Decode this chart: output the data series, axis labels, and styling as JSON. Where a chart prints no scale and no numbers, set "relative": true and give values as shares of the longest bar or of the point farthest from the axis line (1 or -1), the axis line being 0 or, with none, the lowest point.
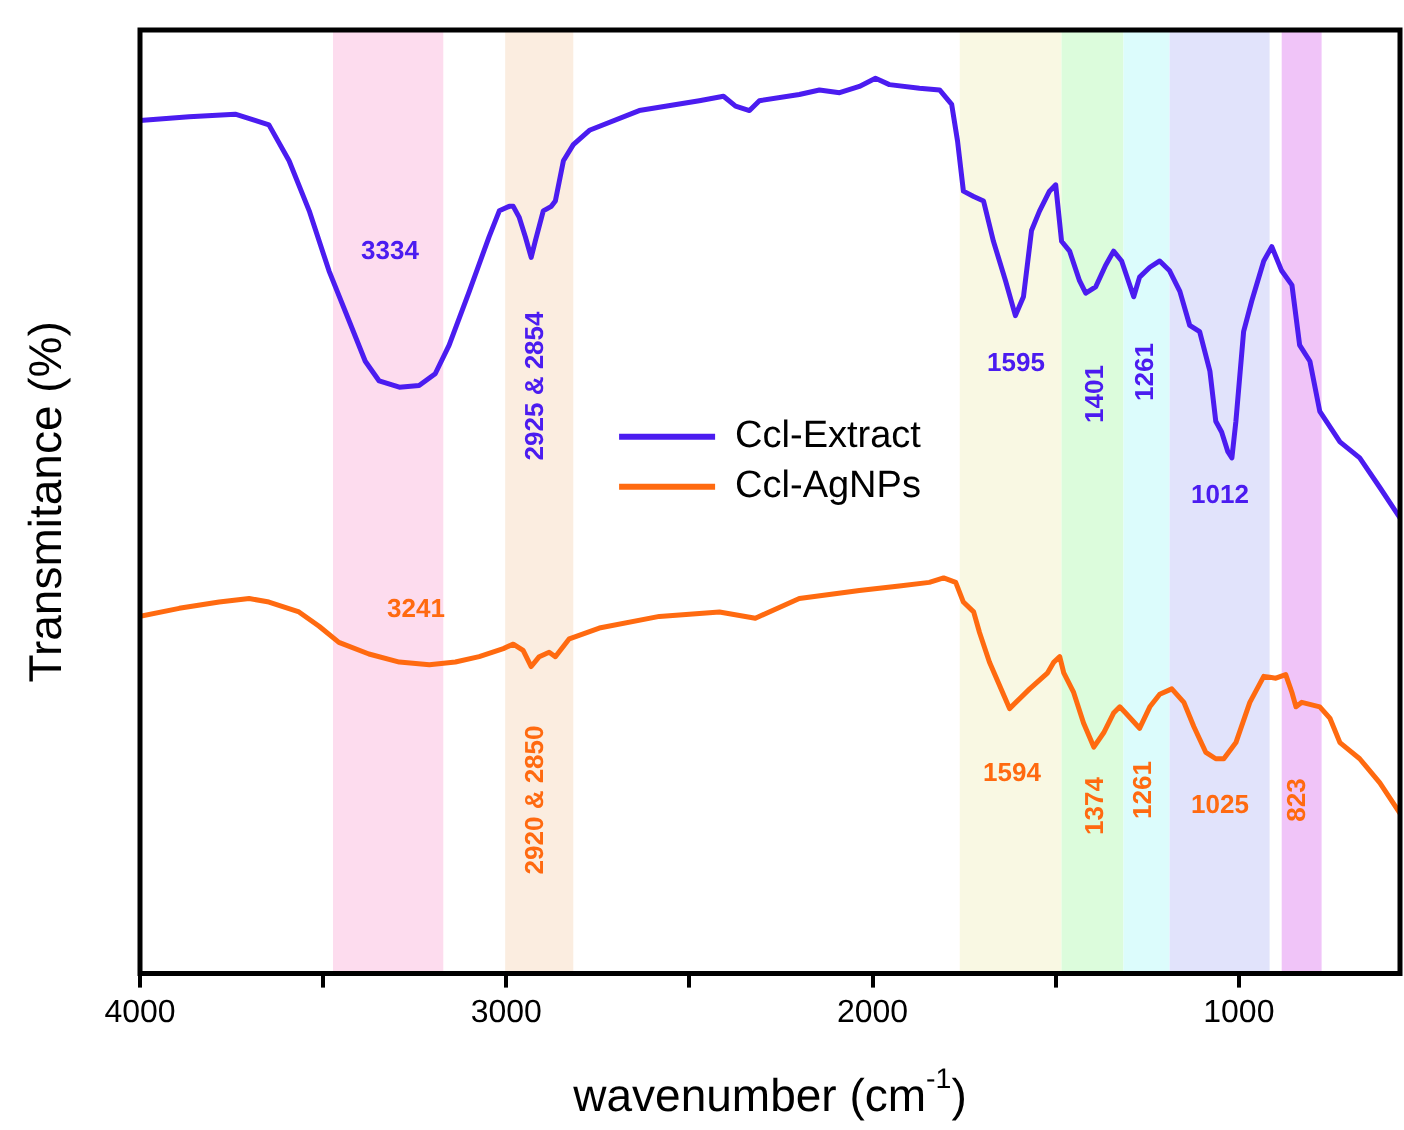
{
  "chart_data": {
    "type": "line",
    "xlabel": "wavenumber (cm$^{-1}$)",
    "ylabel": "Transmitance (%)",
    "relative": true,
    "legend": "center",
    "grid": false,
    "marker": "none",
    "line_style": "solid",
    "xlim": [
      4000,
      560
    ],
    "xticks": [
      4000,
      {
        "value": 3500,
        "label": null
      },
      3000,
      {
        "value": 2500,
        "label": null
      },
      2000,
      {
        "value": 1500,
        "label": null
      },
      1000
    ],
    "series": [
      {
        "name": "Ccl-Extract",
        "color": "#4b1cf0",
        "x": [
          4000,
          3866,
          3740,
          3686,
          3648,
          3593,
          3538,
          3484,
          3429,
          3385,
          3347,
          3292,
          3238,
          3194,
          3156,
          3101,
          3047,
          3019,
          2992,
          2981,
          2965,
          2948,
          2932,
          2921,
          2899,
          2877,
          2866,
          2844,
          2817,
          2773,
          2637,
          2473,
          2407,
          2374,
          2336,
          2309,
          2200,
          2145,
          2090,
          2036,
          1992,
          1954,
          1872,
          1817,
          1784,
          1768,
          1752,
          1724,
          1697,
          1670,
          1637,
          1610,
          1588,
          1566,
          1544,
          1517,
          1500,
          1484,
          1462,
          1435,
          1418,
          1391,
          1364,
          1342,
          1320,
          1287,
          1271,
          1243,
          1216,
          1189,
          1161,
          1134,
          1107,
          1079,
          1063,
          1047,
          1030,
          1019,
          1008,
          987,
          965,
          932,
          910,
          883,
          855,
          834,
          806,
          779,
          724,
          670,
          615,
          560
        ],
        "values": [
          0.953,
          0.957,
          0.96,
          0.953,
          0.948,
          0.908,
          0.852,
          0.785,
          0.729,
          0.684,
          0.662,
          0.655,
          0.657,
          0.67,
          0.702,
          0.762,
          0.823,
          0.852,
          0.857,
          0.857,
          0.845,
          0.823,
          0.8,
          0.818,
          0.852,
          0.857,
          0.863,
          0.908,
          0.926,
          0.942,
          0.964,
          0.975,
          0.98,
          0.969,
          0.964,
          0.975,
          0.982,
          0.987,
          0.984,
          0.991,
          1.0,
          0.993,
          0.989,
          0.987,
          0.971,
          0.93,
          0.874,
          0.868,
          0.863,
          0.818,
          0.774,
          0.735,
          0.756,
          0.83,
          0.852,
          0.874,
          0.881,
          0.818,
          0.807,
          0.774,
          0.76,
          0.767,
          0.791,
          0.807,
          0.796,
          0.756,
          0.778,
          0.789,
          0.796,
          0.785,
          0.762,
          0.724,
          0.717,
          0.673,
          0.617,
          0.605,
          0.583,
          0.576,
          0.617,
          0.717,
          0.751,
          0.796,
          0.812,
          0.785,
          0.769,
          0.702,
          0.684,
          0.628,
          0.594,
          0.576,
          0.543,
          0.509
        ]
      },
      {
        "name": "Ccl-AgNPs",
        "color": "#ff6a10",
        "x": [
          4000,
          3893,
          3784,
          3702,
          3648,
          3566,
          3511,
          3457,
          3375,
          3292,
          3210,
          3139,
          3074,
          3008,
          2981,
          2954,
          2932,
          2910,
          2883,
          2866,
          2828,
          2746,
          2582,
          2418,
          2320,
          2200,
          2036,
          1927,
          1845,
          1806,
          1773,
          1752,
          1724,
          1708,
          1681,
          1626,
          1571,
          1522,
          1505,
          1489,
          1478,
          1451,
          1424,
          1396,
          1369,
          1342,
          1325,
          1309,
          1271,
          1243,
          1216,
          1183,
          1150,
          1123,
          1090,
          1063,
          1041,
          1008,
          970,
          932,
          899,
          872,
          855,
          844,
          828,
          779,
          751,
          724,
          670,
          615,
          560
        ],
        "values": [
          0.399,
          0.408,
          0.415,
          0.419,
          0.415,
          0.404,
          0.388,
          0.37,
          0.357,
          0.348,
          0.345,
          0.348,
          0.354,
          0.363,
          0.368,
          0.361,
          0.343,
          0.354,
          0.359,
          0.354,
          0.374,
          0.386,
          0.399,
          0.404,
          0.397,
          0.419,
          0.428,
          0.433,
          0.437,
          0.442,
          0.437,
          0.415,
          0.404,
          0.381,
          0.348,
          0.296,
          0.318,
          0.336,
          0.348,
          0.354,
          0.336,
          0.314,
          0.28,
          0.253,
          0.269,
          0.291,
          0.298,
          0.291,
          0.274,
          0.298,
          0.312,
          0.318,
          0.303,
          0.276,
          0.247,
          0.24,
          0.24,
          0.258,
          0.303,
          0.332,
          0.33,
          0.334,
          0.314,
          0.298,
          0.303,
          0.298,
          0.285,
          0.258,
          0.24,
          0.213,
          0.179
        ]
      }
    ],
    "bands": [
      {
        "axis": "x",
        "from": 3473,
        "to": 3172,
        "color": "#fddcee"
      },
      {
        "axis": "x",
        "from": 3003,
        "to": 2817,
        "color": "#fbede0"
      },
      {
        "axis": "x",
        "from": 1762,
        "to": 1484,
        "color": "#f9f8e3"
      },
      {
        "axis": "x",
        "from": 1484,
        "to": 1315,
        "color": "#dcfcdc"
      },
      {
        "axis": "x",
        "from": 1315,
        "to": 1189,
        "color": "#dcfcfc"
      },
      {
        "axis": "x",
        "from": 1189,
        "to": 916,
        "color": "#e1e3fb"
      },
      {
        "axis": "x",
        "from": 883,
        "to": 774,
        "color": "#f0c4f8"
      }
    ],
    "annotations": [
      "3334",
      "2925 & 2854",
      "1595",
      "1401",
      "1261",
      "1012",
      "3241",
      "2920 & 2850",
      "1594",
      "1374",
      "1261",
      "1025",
      "823"
    ]
  }
}
